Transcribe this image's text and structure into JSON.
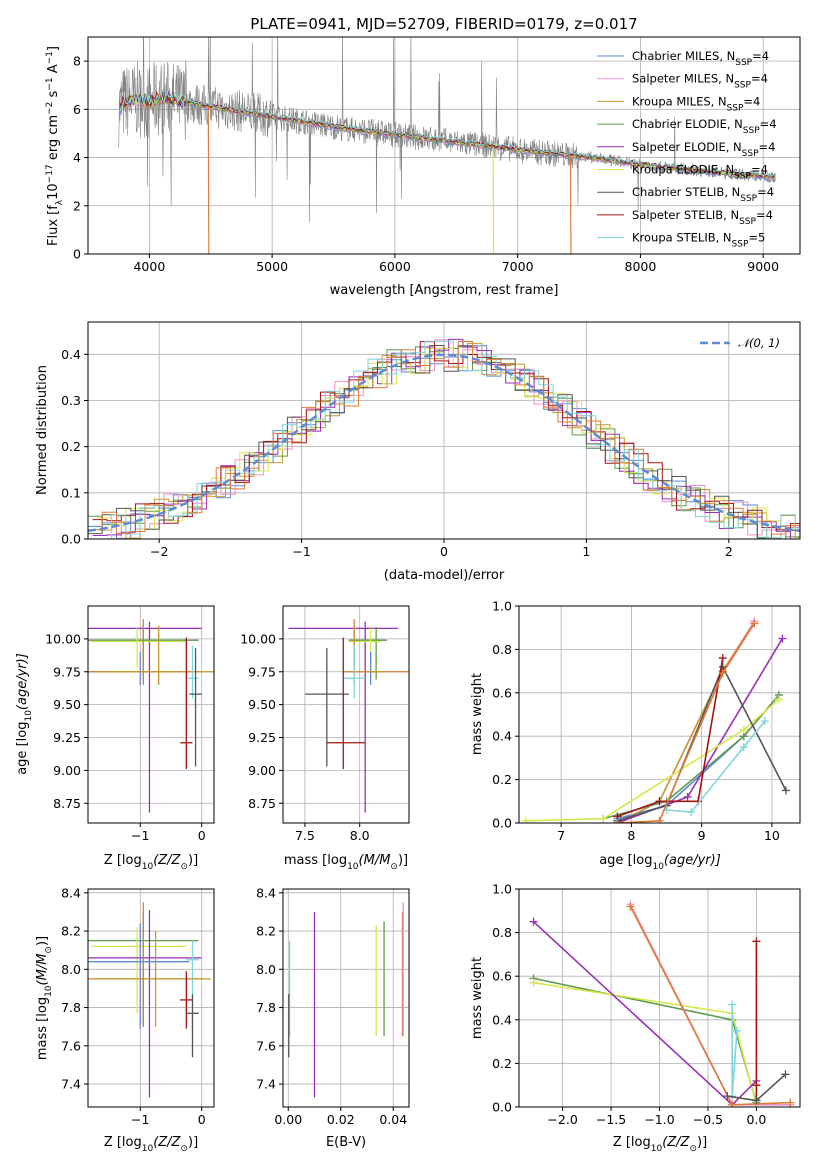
{
  "colors": {
    "chabrier_miles": "#5b8bd6",
    "salpeter_miles": "#ee8fcf",
    "kroupa_miles": "#c49a2e",
    "chabrier_elodie": "#5e9a4f",
    "salpeter_elodie": "#9b2eb8",
    "kroupa_elodie": "#d6e84e",
    "chabrier_stelib": "#555555",
    "salpeter_stelib": "#a31515",
    "kroupa_stelib": "#7fd6db",
    "observed": "#808080",
    "orange": "#e07b39",
    "normal_curve": "#5b8bd6"
  },
  "legend_entries": [
    {
      "key": "chabrier_miles",
      "label": "Chabrier MILES, N",
      "sub": "SSP",
      "eq": "=4"
    },
    {
      "key": "salpeter_miles",
      "label": "Salpeter MILES, N",
      "sub": "SSP",
      "eq": "=4"
    },
    {
      "key": "kroupa_miles",
      "label": "Kroupa MILES, N",
      "sub": "SSP",
      "eq": "=4"
    },
    {
      "key": "chabrier_elodie",
      "label": "Chabrier ELODIE, N",
      "sub": "SSP",
      "eq": "=4"
    },
    {
      "key": "salpeter_elodie",
      "label": "Salpeter ELODIE, N",
      "sub": "SSP",
      "eq": "=4"
    },
    {
      "key": "kroupa_elodie",
      "label": "Kroupa ELODIE, N",
      "sub": "SSP",
      "eq": "=4"
    },
    {
      "key": "chabrier_stelib",
      "label": "Chabrier STELIB, N",
      "sub": "SSP",
      "eq": "=4"
    },
    {
      "key": "salpeter_stelib",
      "label": "Salpeter STELIB, N",
      "sub": "SSP",
      "eq": "=4"
    },
    {
      "key": "kroupa_stelib",
      "label": "Kroupa STELIB, N",
      "sub": "SSP",
      "eq": "=5"
    }
  ],
  "chart_data": [
    {
      "id": "spectrum",
      "type": "line",
      "title": "PLATE=0941, MJD=52709, FIBERID=0179, z=0.017",
      "xlabel": "wavelength [Angstrom, rest frame]",
      "ylabel": "Flux [f",
      "ylabel_rest": "10",
      "ylabel_exp": "−17",
      "ylabel_units": " erg cm",
      "xlim": [
        3500,
        9300
      ],
      "ylim": [
        0,
        9
      ],
      "xticks": [
        4000,
        5000,
        6000,
        7000,
        8000,
        9000
      ],
      "yticks": [
        0,
        2,
        4,
        6,
        8
      ],
      "continuum": [
        [
          3750,
          6.0
        ],
        [
          3800,
          6.3
        ],
        [
          3900,
          6.4
        ],
        [
          4000,
          6.3
        ],
        [
          4100,
          6.5
        ],
        [
          4300,
          6.3
        ],
        [
          4500,
          6.1
        ],
        [
          4700,
          5.95
        ],
        [
          5000,
          5.7
        ],
        [
          5300,
          5.45
        ],
        [
          5600,
          5.2
        ],
        [
          6000,
          4.95
        ],
        [
          6400,
          4.7
        ],
        [
          6800,
          4.45
        ],
        [
          7200,
          4.2
        ],
        [
          7600,
          4.0
        ],
        [
          8000,
          3.7
        ],
        [
          8400,
          3.5
        ],
        [
          8800,
          3.3
        ],
        [
          9100,
          3.2
        ]
      ],
      "dips": [
        [
          4480,
          "orange"
        ],
        [
          6800,
          "kroupa_elodie"
        ],
        [
          7430,
          "orange"
        ]
      ]
    },
    {
      "id": "residuals",
      "type": "bar",
      "xlabel": "(data-model)/error",
      "ylabel": "Normed distribution",
      "legend": "𝒩(0, 1)",
      "xlim": [
        -2.5,
        2.5
      ],
      "ylim": [
        0,
        0.47
      ],
      "xticks": [
        -2,
        -1,
        0,
        1,
        2
      ],
      "yticks": [
        0.0,
        0.1,
        0.2,
        0.3,
        0.4
      ],
      "bin_width": 0.1
    },
    {
      "id": "age_vs_Z",
      "type": "scatter",
      "xlabel": "Z [log",
      "xlabel_tail": "(Z/Z",
      "xlabel_end": ")]",
      "ylabel": "age  [log",
      "ylabel_tail": "(age/yr)]",
      "xlim": [
        -1.85,
        0.2
      ],
      "ylim": [
        8.6,
        10.25
      ],
      "xticks": [
        -1,
        0
      ],
      "yticks": [
        8.75,
        9.0,
        9.25,
        9.5,
        9.75,
        10.0
      ],
      "points": [
        {
          "key": "salpeter_elodie",
          "x": -0.85,
          "y": 10.08,
          "xerr": [
            1.15,
            0.85
          ],
          "yerr": [
            1.4,
            0.05
          ]
        },
        {
          "key": "chabrier_elodie",
          "x": -0.95,
          "y": 9.99,
          "xerr": [
            0.95,
            0.9
          ],
          "yerr": [
            0.3,
            0.1
          ]
        },
        {
          "key": "kroupa_elodie",
          "x": -1.05,
          "y": 9.98,
          "xerr": [
            0.75,
            0.8
          ],
          "yerr": [
            0.2,
            0.1
          ]
        },
        {
          "key": "chabrier_miles",
          "x": -1.0,
          "y": 9.75,
          "xerr": [
            0.85,
            0.75
          ],
          "yerr": [
            0.1,
            0.15
          ]
        },
        {
          "key": "orange",
          "x": -0.95,
          "y": 9.75,
          "xerr": [
            0.9,
            0.95
          ],
          "yerr": [
            0.1,
            0.4
          ]
        },
        {
          "key": "kroupa_miles",
          "x": -0.7,
          "y": 9.75,
          "xerr": [
            1.0,
            0.9
          ],
          "yerr": [
            0.1,
            0.35
          ]
        },
        {
          "key": "kroupa_stelib",
          "x": -0.15,
          "y": 9.7,
          "xerr": [
            0.1,
            0.1
          ],
          "yerr": [
            0.15,
            0.25
          ]
        },
        {
          "key": "chabrier_stelib",
          "x": -0.1,
          "y": 9.58,
          "xerr": [
            0.1,
            0.1
          ],
          "yerr": [
            0.55,
            0.35
          ]
        },
        {
          "key": "salpeter_stelib",
          "x": -0.25,
          "y": 9.21,
          "xerr": [
            0.1,
            0.1
          ],
          "yerr": [
            0.2,
            0.8
          ]
        }
      ]
    },
    {
      "id": "age_vs_mass",
      "type": "scatter",
      "xlabel": "mass [log",
      "xlabel_tail": "(M/M",
      "xlabel_end": ")]",
      "xlim": [
        7.3,
        8.45
      ],
      "ylim": [
        8.6,
        10.25
      ],
      "xticks": [
        7.5,
        8.0
      ],
      "yticks": [
        8.75,
        9.0,
        9.25,
        9.5,
        9.75,
        10.0
      ],
      "points": [
        {
          "key": "salpeter_elodie",
          "x": 8.05,
          "y": 10.08,
          "xerr": [
            0.7,
            0.3
          ],
          "yerr": [
            1.4,
            0.05
          ]
        },
        {
          "key": "chabrier_elodie",
          "x": 8.15,
          "y": 9.99,
          "xerr": [
            0.25,
            0.1
          ],
          "yerr": [
            0.3,
            0.1
          ]
        },
        {
          "key": "kroupa_elodie",
          "x": 8.1,
          "y": 9.98,
          "xerr": [
            0.2,
            0.1
          ],
          "yerr": [
            0.2,
            0.1
          ]
        },
        {
          "key": "chabrier_miles",
          "x": 8.1,
          "y": 9.75,
          "xerr": [
            0.1,
            0.1
          ],
          "yerr": [
            0.1,
            0.15
          ]
        },
        {
          "key": "orange",
          "x": 7.95,
          "y": 9.75,
          "xerr": [
            0.1,
            0.5
          ],
          "yerr": [
            0.1,
            0.4
          ]
        },
        {
          "key": "kroupa_miles",
          "x": 7.95,
          "y": 9.75,
          "xerr": [
            0.05,
            0.3
          ],
          "yerr": [
            0.1,
            0.35
          ]
        },
        {
          "key": "kroupa_stelib",
          "x": 7.95,
          "y": 9.7,
          "xerr": [
            0.1,
            0.1
          ],
          "yerr": [
            0.15,
            0.25
          ]
        },
        {
          "key": "chabrier_stelib",
          "x": 7.7,
          "y": 9.58,
          "xerr": [
            0.2,
            0.2
          ],
          "yerr": [
            0.55,
            0.35
          ]
        },
        {
          "key": "salpeter_stelib",
          "x": 7.85,
          "y": 9.21,
          "xerr": [
            0.15,
            0.2
          ],
          "yerr": [
            0.2,
            0.8
          ]
        }
      ]
    },
    {
      "id": "weight_vs_age",
      "type": "line",
      "xlabel": "age  [log",
      "xlabel_tail": "(age/yr)]",
      "ylabel": "mass weight",
      "xlim": [
        6.4,
        10.4
      ],
      "ylim": [
        0,
        1.0
      ],
      "xticks": [
        7,
        8,
        9,
        10
      ],
      "yticks": [
        0.0,
        0.2,
        0.4,
        0.6,
        0.8,
        1.0
      ],
      "series": [
        {
          "key": "chabrier_miles",
          "x": [
            7.8,
            8.5,
            9.6,
            10.1
          ],
          "y": [
            0.02,
            0.08,
            0.4,
            0.59
          ]
        },
        {
          "key": "salpeter_miles",
          "x": [
            7.8,
            8.4,
            9.3,
            9.75
          ],
          "y": [
            0.0,
            0.1,
            0.7,
            0.93
          ]
        },
        {
          "key": "kroupa_miles",
          "x": [
            7.8,
            8.4,
            9.3,
            9.75
          ],
          "y": [
            0.0,
            0.1,
            0.7,
            0.92
          ]
        },
        {
          "key": "chabrier_elodie",
          "x": [
            7.6,
            8.5,
            9.6,
            10.1
          ],
          "y": [
            0.02,
            0.1,
            0.4,
            0.59
          ]
        },
        {
          "key": "salpeter_elodie",
          "x": [
            7.8,
            8.8,
            10.15
          ],
          "y": [
            0.0,
            0.12,
            0.85
          ]
        },
        {
          "key": "kroupa_elodie",
          "x": [
            6.5,
            7.6,
            9.6,
            10.1
          ],
          "y": [
            0.01,
            0.02,
            0.43,
            0.57
          ]
        },
        {
          "key": "chabrier_stelib",
          "x": [
            7.8,
            8.5,
            9.3,
            10.2
          ],
          "y": [
            0.01,
            0.08,
            0.72,
            0.15
          ]
        },
        {
          "key": "salpeter_stelib",
          "x": [
            7.8,
            8.4,
            8.95,
            9.3
          ],
          "y": [
            0.03,
            0.1,
            0.1,
            0.76
          ]
        },
        {
          "key": "kroupa_stelib",
          "x": [
            8.5,
            8.85,
            9.6,
            9.9
          ],
          "y": [
            0.06,
            0.05,
            0.35,
            0.47
          ]
        },
        {
          "key": "orange",
          "x": [
            7.8,
            8.4,
            9.3,
            9.75
          ],
          "y": [
            0.0,
            0.01,
            0.69,
            0.92
          ]
        }
      ]
    },
    {
      "id": "mass_vs_Z",
      "type": "scatter",
      "xlabel": "Z [log",
      "xlabel_tail": "(Z/Z",
      "xlabel_end": ")]",
      "ylabel": "mass [log",
      "ylabel_tail": "(M/M",
      "ylabel_end": ")]",
      "xlim": [
        -1.85,
        0.2
      ],
      "ylim": [
        7.28,
        8.42
      ],
      "xticks": [
        -1,
        0
      ],
      "yticks": [
        7.4,
        7.6,
        7.8,
        8.0,
        8.2,
        8.4
      ],
      "points": [
        {
          "key": "chabrier_elodie",
          "x": -0.95,
          "y": 8.15,
          "xerr": [
            0.95,
            0.9
          ],
          "yerr": [
            0.45,
            0.15
          ]
        },
        {
          "key": "kroupa_elodie",
          "x": -1.05,
          "y": 8.12,
          "xerr": [
            0.75,
            0.8
          ],
          "yerr": [
            0.35,
            0.1
          ]
        },
        {
          "key": "salpeter_elodie",
          "x": -0.85,
          "y": 8.06,
          "xerr": [
            1.15,
            0.85
          ],
          "yerr": [
            0.73,
            0.25
          ]
        },
        {
          "key": "kroupa_stelib",
          "x": -0.15,
          "y": 8.05,
          "xerr": [
            0.1,
            0.1
          ],
          "yerr": [
            0.37,
            0.1
          ]
        },
        {
          "key": "chabrier_miles",
          "x": -1.0,
          "y": 8.04,
          "xerr": [
            0.85,
            0.8
          ],
          "yerr": [
            0.35,
            0.2
          ]
        },
        {
          "key": "orange",
          "x": -0.95,
          "y": 7.95,
          "xerr": [
            0.9,
            0.95
          ],
          "yerr": [
            0.25,
            0.4
          ]
        },
        {
          "key": "kroupa_miles",
          "x": -0.75,
          "y": 7.95,
          "xerr": [
            1.0,
            0.9
          ],
          "yerr": [
            0.25,
            0.25
          ]
        },
        {
          "key": "salpeter_stelib",
          "x": -0.25,
          "y": 7.84,
          "xerr": [
            0.1,
            0.1
          ],
          "yerr": [
            0.15,
            0.15
          ]
        },
        {
          "key": "chabrier_stelib",
          "x": -0.15,
          "y": 7.77,
          "xerr": [
            0.1,
            0.1
          ],
          "yerr": [
            0.23,
            0.1
          ]
        }
      ]
    },
    {
      "id": "mass_vs_ebv",
      "type": "scatter",
      "xlabel": "E(B-V)",
      "xlim": [
        -0.002,
        0.046
      ],
      "ylim": [
        7.28,
        8.42
      ],
      "xticks": [
        0.0,
        0.02,
        0.04
      ],
      "yticks": [
        7.4,
        7.6,
        7.8,
        8.0,
        8.2,
        8.4
      ],
      "points": [
        {
          "key": "kroupa_stelib",
          "x": 0.0005,
          "y": 8.0,
          "yerr": [
            0.35,
            0.15
          ]
        },
        {
          "key": "chabrier_stelib",
          "x": 0.0002,
          "y": 7.77,
          "yerr": [
            0.23,
            0.1
          ]
        },
        {
          "key": "salpeter_elodie",
          "x": 0.01,
          "y": 7.9,
          "yerr": [
            0.57,
            0.4
          ]
        },
        {
          "key": "kroupa_elodie",
          "x": 0.0335,
          "y": 7.95,
          "yerr": [
            0.3,
            0.28
          ]
        },
        {
          "key": "chabrier_elodie",
          "x": 0.0365,
          "y": 7.95,
          "yerr": [
            0.3,
            0.3
          ]
        },
        {
          "key": "orange",
          "x": 0.0435,
          "y": 8.0,
          "yerr": [
            0.35,
            0.3
          ]
        },
        {
          "key": "salpeter_miles",
          "x": 0.0438,
          "y": 8.0,
          "yerr": [
            0.35,
            0.35
          ]
        }
      ]
    },
    {
      "id": "weight_vs_Z",
      "type": "line",
      "xlabel": "Z [log",
      "xlabel_tail": "(Z/Z",
      "xlabel_end": ")]",
      "ylabel": "mass weight",
      "xlim": [
        -2.45,
        0.45
      ],
      "ylim": [
        0,
        1.0
      ],
      "xticks": [
        -2.0,
        -1.5,
        -1.0,
        -0.5,
        0.0
      ],
      "yticks": [
        0.0,
        0.2,
        0.4,
        0.6,
        0.8,
        1.0
      ],
      "series": [
        {
          "key": "chabrier_elodie",
          "x": [
            -2.3,
            -0.25,
            0.0
          ],
          "y": [
            0.59,
            0.4,
            0.02
          ]
        },
        {
          "key": "kroupa_elodie",
          "x": [
            -2.3,
            -0.25,
            0.0
          ],
          "y": [
            0.57,
            0.43,
            0.01
          ]
        },
        {
          "key": "salpeter_elodie",
          "x": [
            -2.3,
            -0.25,
            0.0
          ],
          "y": [
            0.85,
            0.01,
            0.12
          ]
        },
        {
          "key": "salpeter_miles",
          "x": [
            -1.3,
            -0.25,
            0.35
          ],
          "y": [
            0.93,
            0.01,
            0.01
          ]
        },
        {
          "key": "orange",
          "x": [
            -1.3,
            -0.25,
            0.35
          ],
          "y": [
            0.92,
            0.01,
            0.02
          ]
        },
        {
          "key": "kroupa_stelib",
          "x": [
            -0.25,
            -0.25,
            -0.2
          ],
          "y": [
            0.47,
            0.05,
            0.35
          ]
        },
        {
          "key": "salpeter_stelib",
          "x": [
            0.0,
            0.0,
            0.0
          ],
          "y": [
            0.76,
            0.1,
            0.03
          ]
        },
        {
          "key": "chabrier_stelib",
          "x": [
            -0.3,
            0.0,
            0.3
          ],
          "y": [
            0.05,
            0.03,
            0.15
          ]
        }
      ]
    }
  ]
}
